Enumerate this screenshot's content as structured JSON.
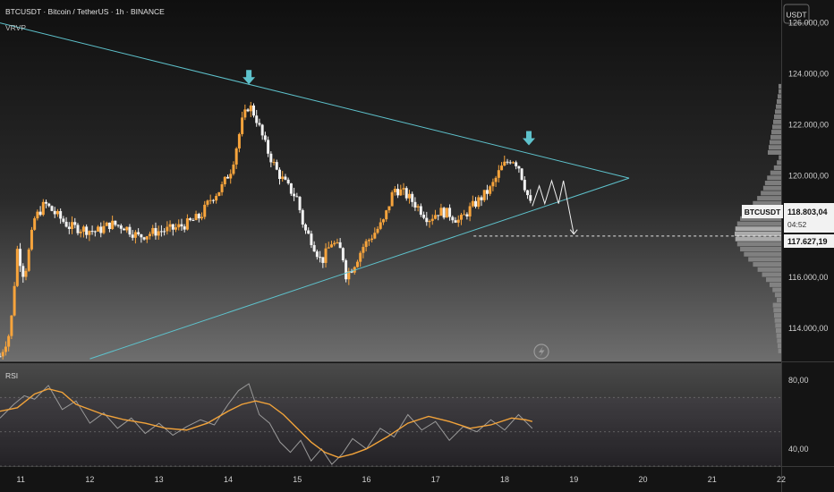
{
  "header": {
    "symbol_line": "BTCUSDT · Bitcoin / TetherUS · 1h · BINANCE",
    "indicator": "VRVP"
  },
  "price_axis": {
    "currency": "USDT",
    "labels": [
      "126.000,00",
      "124.000,00",
      "122.000,00",
      "120.000,00",
      "116.000,00",
      "114.000,00"
    ]
  },
  "price_tag": {
    "symbol": "BTCUSDT",
    "price": "118.803,04",
    "countdown": "04:52",
    "level_price": "117.627,19"
  },
  "rsi": {
    "label": "RSI",
    "axis_labels": [
      "80,00",
      "40,00"
    ]
  },
  "time_axis": {
    "labels": [
      "11",
      "12",
      "13",
      "14",
      "15",
      "16",
      "17",
      "18",
      "19",
      "20",
      "21",
      "22"
    ]
  },
  "colors": {
    "bull": "#f7a43c",
    "bear": "#f2f2f2",
    "trendline": "#5ec2cc",
    "marker": "#5ec2cc",
    "rsi_line": "#f2a33a",
    "rsi_ma": "#9a9a9a"
  },
  "icons": {
    "marker": "arrow-down-icon",
    "bolt": "lightning-icon"
  },
  "chart_data": {
    "type": "candlestick",
    "x_unit": "day",
    "xlim": [
      10.7,
      22.0
    ],
    "ylim": [
      112700,
      126900
    ],
    "close_points": [
      [
        10.7,
        112900
      ],
      [
        10.85,
        113900
      ],
      [
        10.95,
        117100
      ],
      [
        11.05,
        116000
      ],
      [
        11.2,
        118300
      ],
      [
        11.35,
        118900
      ],
      [
        11.5,
        118500
      ],
      [
        11.7,
        118000
      ],
      [
        11.9,
        117900
      ],
      [
        12.1,
        117800
      ],
      [
        12.3,
        118100
      ],
      [
        12.5,
        118000
      ],
      [
        12.7,
        117600
      ],
      [
        12.95,
        117800
      ],
      [
        13.2,
        117900
      ],
      [
        13.4,
        118100
      ],
      [
        13.6,
        118400
      ],
      [
        13.75,
        119100
      ],
      [
        13.9,
        119500
      ],
      [
        14.05,
        120300
      ],
      [
        14.2,
        122100
      ],
      [
        14.3,
        122800
      ],
      [
        14.4,
        122300
      ],
      [
        14.55,
        121100
      ],
      [
        14.7,
        120200
      ],
      [
        14.85,
        119600
      ],
      [
        15.0,
        119100
      ],
      [
        15.1,
        117900
      ],
      [
        15.2,
        117500
      ],
      [
        15.35,
        116600
      ],
      [
        15.5,
        117400
      ],
      [
        15.65,
        117000
      ],
      [
        15.7,
        116100
      ],
      [
        15.8,
        116400
      ],
      [
        15.95,
        117200
      ],
      [
        16.1,
        117700
      ],
      [
        16.25,
        118200
      ],
      [
        16.4,
        119500
      ],
      [
        16.55,
        119300
      ],
      [
        16.7,
        118900
      ],
      [
        16.9,
        118300
      ],
      [
        17.05,
        118600
      ],
      [
        17.2,
        118500
      ],
      [
        17.35,
        118200
      ],
      [
        17.5,
        118700
      ],
      [
        17.65,
        119100
      ],
      [
        17.8,
        119500
      ],
      [
        17.95,
        120300
      ],
      [
        18.1,
        120700
      ],
      [
        18.2,
        120400
      ],
      [
        18.3,
        119500
      ],
      [
        18.38,
        118803
      ]
    ],
    "projection": [
      [
        18.4,
        118800
      ],
      [
        18.5,
        119600
      ],
      [
        18.58,
        118900
      ],
      [
        18.68,
        119800
      ],
      [
        18.78,
        118900
      ],
      [
        18.85,
        119800
      ],
      [
        19.0,
        117700
      ]
    ],
    "trendline_upper": [
      [
        10.7,
        126000
      ],
      [
        19.8,
        119900
      ]
    ],
    "trendline_lower": [
      [
        12.0,
        112800
      ],
      [
        19.8,
        119900
      ]
    ],
    "horizontal_level": 117627.19,
    "markers": [
      [
        14.3,
        123800
      ],
      [
        18.35,
        121400
      ]
    ],
    "rsi": {
      "ylim": [
        30,
        90
      ],
      "values": [
        [
          10.7,
          62
        ],
        [
          10.95,
          64
        ],
        [
          11.2,
          72
        ],
        [
          11.4,
          75
        ],
        [
          11.6,
          73
        ],
        [
          11.8,
          66
        ],
        [
          12.0,
          63
        ],
        [
          12.2,
          60
        ],
        [
          12.5,
          57
        ],
        [
          12.8,
          55
        ],
        [
          13.1,
          52
        ],
        [
          13.4,
          51
        ],
        [
          13.7,
          55
        ],
        [
          14.0,
          62
        ],
        [
          14.2,
          66
        ],
        [
          14.4,
          68
        ],
        [
          14.6,
          66
        ],
        [
          14.8,
          60
        ],
        [
          15.0,
          52
        ],
        [
          15.2,
          44
        ],
        [
          15.4,
          38
        ],
        [
          15.6,
          35
        ],
        [
          15.8,
          37
        ],
        [
          16.0,
          40
        ],
        [
          16.3,
          47
        ],
        [
          16.6,
          55
        ],
        [
          16.9,
          59
        ],
        [
          17.2,
          56
        ],
        [
          17.5,
          52
        ],
        [
          17.8,
          54
        ],
        [
          18.1,
          58
        ],
        [
          18.3,
          57
        ],
        [
          18.4,
          56
        ]
      ],
      "ma": [
        [
          10.7,
          58
        ],
        [
          10.9,
          66
        ],
        [
          11.05,
          71
        ],
        [
          11.2,
          69
        ],
        [
          11.4,
          77
        ],
        [
          11.6,
          63
        ],
        [
          11.8,
          68
        ],
        [
          12.0,
          55
        ],
        [
          12.2,
          61
        ],
        [
          12.4,
          52
        ],
        [
          12.6,
          58
        ],
        [
          12.8,
          49
        ],
        [
          13.0,
          55
        ],
        [
          13.2,
          48
        ],
        [
          13.4,
          53
        ],
        [
          13.6,
          57
        ],
        [
          13.8,
          54
        ],
        [
          14.0,
          66
        ],
        [
          14.15,
          74
        ],
        [
          14.3,
          78
        ],
        [
          14.45,
          60
        ],
        [
          14.6,
          55
        ],
        [
          14.75,
          44
        ],
        [
          14.9,
          38
        ],
        [
          15.05,
          45
        ],
        [
          15.2,
          33
        ],
        [
          15.35,
          40
        ],
        [
          15.5,
          31
        ],
        [
          15.65,
          37
        ],
        [
          15.8,
          46
        ],
        [
          16.0,
          40
        ],
        [
          16.2,
          52
        ],
        [
          16.4,
          47
        ],
        [
          16.6,
          60
        ],
        [
          16.8,
          51
        ],
        [
          17.0,
          56
        ],
        [
          17.2,
          45
        ],
        [
          17.4,
          53
        ],
        [
          17.6,
          50
        ],
        [
          17.8,
          57
        ],
        [
          18.0,
          51
        ],
        [
          18.2,
          60
        ],
        [
          18.4,
          52
        ]
      ],
      "levels": [
        70,
        50,
        30
      ]
    }
  }
}
